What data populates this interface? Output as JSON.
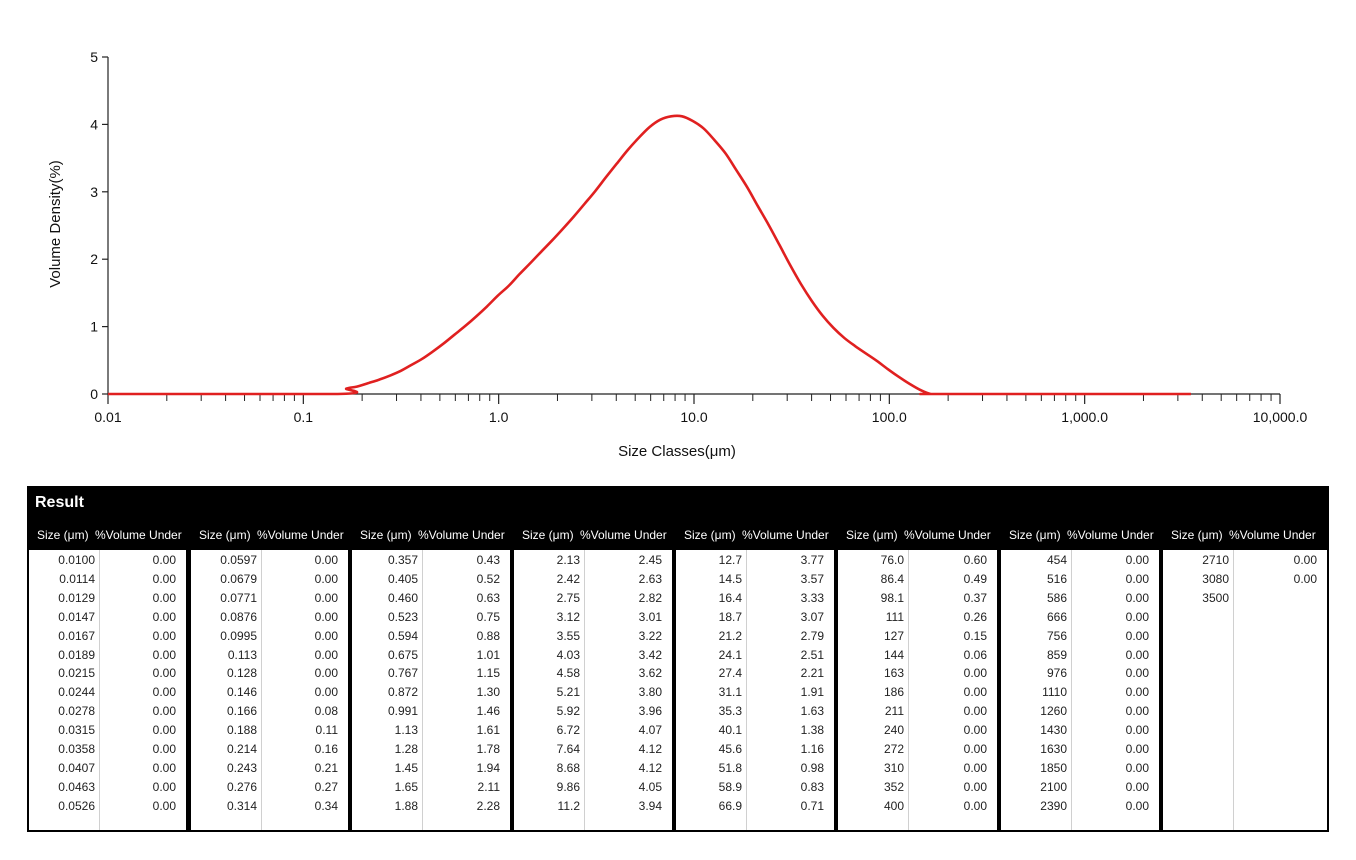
{
  "chart_data": {
    "type": "line",
    "xscale": "log",
    "xlim": [
      0.01,
      10000
    ],
    "ylim": [
      0,
      5
    ],
    "xlabel": "Size Classes(μm)",
    "ylabel": "Volume Density(%)",
    "xticks": [
      {
        "value": 0.01,
        "label": "0.01"
      },
      {
        "value": 0.1,
        "label": "0.1"
      },
      {
        "value": 1,
        "label": "1.0"
      },
      {
        "value": 10,
        "label": "10.0"
      },
      {
        "value": 100,
        "label": "100.0"
      },
      {
        "value": 1000,
        "label": "1,000.0"
      },
      {
        "value": 10000,
        "label": "10,000.0"
      }
    ],
    "yticks": [
      0,
      1,
      2,
      3,
      4,
      5
    ],
    "series": [
      {
        "color": "#e02020",
        "x": [
          0.01,
          0.15,
          0.166,
          0.188,
          0.214,
          0.243,
          0.276,
          0.314,
          0.357,
          0.405,
          0.46,
          0.523,
          0.594,
          0.675,
          0.767,
          0.872,
          0.991,
          1.13,
          1.28,
          1.45,
          1.65,
          1.88,
          2.13,
          2.42,
          2.75,
          3.12,
          3.55,
          4.03,
          4.58,
          5.21,
          5.92,
          6.72,
          7.64,
          8.68,
          9.86,
          11.2,
          12.7,
          14.5,
          16.4,
          18.7,
          21.2,
          24.1,
          27.4,
          31.1,
          35.3,
          40.1,
          45.6,
          51.8,
          58.9,
          66.9,
          76.0,
          86.4,
          98.1,
          111,
          127,
          144,
          163,
          186,
          3500
        ],
        "y": [
          0,
          0,
          0.08,
          0.11,
          0.16,
          0.21,
          0.27,
          0.34,
          0.43,
          0.52,
          0.63,
          0.75,
          0.88,
          1.01,
          1.15,
          1.3,
          1.46,
          1.61,
          1.78,
          1.94,
          2.11,
          2.28,
          2.45,
          2.63,
          2.82,
          3.01,
          3.22,
          3.42,
          3.62,
          3.8,
          3.96,
          4.07,
          4.12,
          4.12,
          4.05,
          3.94,
          3.77,
          3.57,
          3.33,
          3.07,
          2.79,
          2.51,
          2.21,
          1.91,
          1.63,
          1.38,
          1.16,
          0.98,
          0.83,
          0.71,
          0.6,
          0.49,
          0.37,
          0.26,
          0.15,
          0.06,
          0,
          0,
          0
        ]
      }
    ]
  },
  "result": {
    "title": "Result",
    "size_header": "Size (μm)",
    "volume_header": "%Volume Under",
    "columns": [
      {
        "sizes": [
          "0.0100",
          "0.0114",
          "0.0129",
          "0.0147",
          "0.0167",
          "0.0189",
          "0.0215",
          "0.0244",
          "0.0278",
          "0.0315",
          "0.0358",
          "0.0407",
          "0.0463",
          "0.0526"
        ],
        "volumes": [
          "0.00",
          "0.00",
          "0.00",
          "0.00",
          "0.00",
          "0.00",
          "0.00",
          "0.00",
          "0.00",
          "0.00",
          "0.00",
          "0.00",
          "0.00",
          "0.00"
        ]
      },
      {
        "sizes": [
          "0.0597",
          "0.0679",
          "0.0771",
          "0.0876",
          "0.0995",
          "0.113",
          "0.128",
          "0.146",
          "0.166",
          "0.188",
          "0.214",
          "0.243",
          "0.276",
          "0.314"
        ],
        "volumes": [
          "0.00",
          "0.00",
          "0.00",
          "0.00",
          "0.00",
          "0.00",
          "0.00",
          "0.00",
          "0.08",
          "0.11",
          "0.16",
          "0.21",
          "0.27",
          "0.34"
        ]
      },
      {
        "sizes": [
          "0.357",
          "0.405",
          "0.460",
          "0.523",
          "0.594",
          "0.675",
          "0.767",
          "0.872",
          "0.991",
          "1.13",
          "1.28",
          "1.45",
          "1.65",
          "1.88"
        ],
        "volumes": [
          "0.43",
          "0.52",
          "0.63",
          "0.75",
          "0.88",
          "1.01",
          "1.15",
          "1.30",
          "1.46",
          "1.61",
          "1.78",
          "1.94",
          "2.11",
          "2.28"
        ]
      },
      {
        "sizes": [
          "2.13",
          "2.42",
          "2.75",
          "3.12",
          "3.55",
          "4.03",
          "4.58",
          "5.21",
          "5.92",
          "6.72",
          "7.64",
          "8.68",
          "9.86",
          "11.2"
        ],
        "volumes": [
          "2.45",
          "2.63",
          "2.82",
          "3.01",
          "3.22",
          "3.42",
          "3.62",
          "3.80",
          "3.96",
          "4.07",
          "4.12",
          "4.12",
          "4.05",
          "3.94"
        ]
      },
      {
        "sizes": [
          "12.7",
          "14.5",
          "16.4",
          "18.7",
          "21.2",
          "24.1",
          "27.4",
          "31.1",
          "35.3",
          "40.1",
          "45.6",
          "51.8",
          "58.9",
          "66.9"
        ],
        "volumes": [
          "3.77",
          "3.57",
          "3.33",
          "3.07",
          "2.79",
          "2.51",
          "2.21",
          "1.91",
          "1.63",
          "1.38",
          "1.16",
          "0.98",
          "0.83",
          "0.71"
        ]
      },
      {
        "sizes": [
          "76.0",
          "86.4",
          "98.1",
          "111",
          "127",
          "144",
          "163",
          "186",
          "211",
          "240",
          "272",
          "310",
          "352",
          "400"
        ],
        "volumes": [
          "0.60",
          "0.49",
          "0.37",
          "0.26",
          "0.15",
          "0.06",
          "0.00",
          "0.00",
          "0.00",
          "0.00",
          "0.00",
          "0.00",
          "0.00",
          "0.00"
        ]
      },
      {
        "sizes": [
          "454",
          "516",
          "586",
          "666",
          "756",
          "859",
          "976",
          "1110",
          "1260",
          "1430",
          "1630",
          "1850",
          "2100",
          "2390"
        ],
        "volumes": [
          "0.00",
          "0.00",
          "0.00",
          "0.00",
          "0.00",
          "0.00",
          "0.00",
          "0.00",
          "0.00",
          "0.00",
          "0.00",
          "0.00",
          "0.00",
          "0.00"
        ]
      },
      {
        "sizes": [
          "2710",
          "3080",
          "3500"
        ],
        "volumes": [
          "0.00",
          "0.00",
          ""
        ]
      }
    ]
  }
}
